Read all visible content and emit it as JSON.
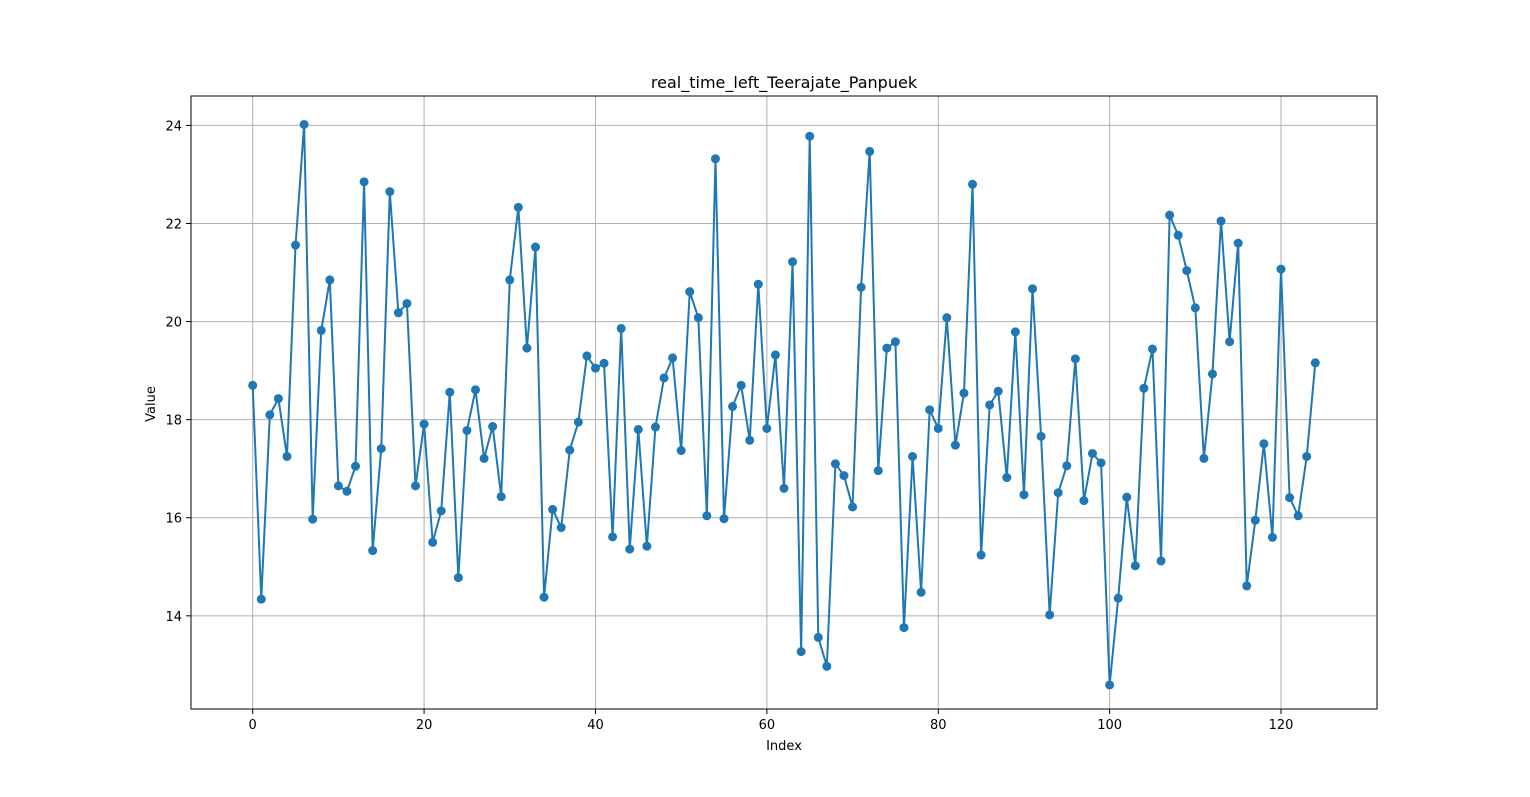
{
  "chart_data": {
    "type": "line",
    "title": "real_time_left_Teerajate_Panpuek",
    "xlabel": "Index",
    "ylabel": "Value",
    "xlim": [
      -7.2,
      131.2
    ],
    "ylim": [
      12.1,
      24.6
    ],
    "xticks": [
      0,
      20,
      40,
      60,
      80,
      100,
      120
    ],
    "yticks": [
      14,
      16,
      18,
      20,
      22,
      24
    ],
    "grid": true,
    "legend": "none",
    "marker": "circle",
    "color": "#1f77b4",
    "series": [
      {
        "x": [
          0,
          1,
          2,
          3,
          4,
          5,
          6,
          7,
          8,
          9,
          10,
          11,
          12,
          13,
          14,
          15,
          16,
          17,
          18,
          19,
          20,
          21,
          22,
          23,
          24,
          25,
          26,
          27,
          28,
          29,
          30,
          31,
          32,
          33,
          34,
          35,
          36,
          37,
          38,
          39,
          40,
          41,
          42,
          43,
          44,
          45,
          46,
          47,
          48,
          49,
          50,
          51,
          52,
          53,
          54,
          55,
          56,
          57,
          58,
          59,
          60,
          61,
          62,
          63,
          64,
          65,
          66,
          67,
          68,
          69,
          70,
          71,
          72,
          73,
          74,
          75,
          76,
          77,
          78,
          79,
          80,
          81,
          82,
          83,
          84,
          85,
          86,
          87,
          88,
          89,
          90,
          91,
          92,
          93,
          94,
          95,
          96,
          97,
          98,
          99,
          100,
          101,
          102,
          103,
          104,
          105,
          106,
          107,
          108,
          109,
          110,
          111,
          112,
          113,
          114,
          115,
          116,
          117,
          118,
          119,
          120,
          121,
          122,
          123,
          124
        ],
        "values": [
          18.7,
          14.34,
          18.1,
          18.43,
          17.25,
          21.56,
          24.02,
          15.97,
          19.82,
          20.85,
          16.65,
          16.54,
          17.05,
          22.85,
          15.33,
          17.41,
          22.65,
          20.18,
          20.37,
          16.65,
          17.91,
          15.5,
          16.14,
          18.56,
          14.78,
          17.78,
          18.61,
          17.21,
          17.86,
          16.43,
          20.85,
          22.33,
          19.46,
          21.52,
          14.38,
          16.17,
          15.8,
          17.38,
          17.95,
          19.3,
          19.05,
          19.15,
          15.61,
          19.86,
          15.36,
          17.8,
          15.42,
          17.85,
          18.85,
          19.26,
          17.37,
          20.61,
          20.08,
          16.04,
          23.32,
          15.98,
          18.27,
          18.7,
          17.58,
          20.76,
          17.82,
          19.32,
          16.6,
          21.22,
          13.27,
          23.78,
          13.56,
          12.97,
          17.1,
          16.86,
          16.22,
          20.7,
          23.47,
          16.96,
          19.46,
          19.59,
          13.76,
          17.25,
          14.48,
          18.2,
          17.82,
          20.08,
          17.48,
          18.54,
          22.8,
          15.24,
          18.3,
          18.58,
          16.82,
          19.79,
          16.47,
          20.67,
          17.66,
          14.02,
          16.51,
          17.06,
          19.24,
          16.35,
          17.31,
          17.12,
          12.59,
          14.36,
          16.42,
          15.02,
          18.64,
          19.44,
          15.12,
          22.17,
          21.76,
          21.04,
          20.28,
          17.21,
          18.93,
          22.05,
          19.59,
          21.6,
          14.61,
          15.95,
          17.51,
          15.6,
          21.07,
          16.41,
          16.04,
          17.25,
          19.16
        ]
      }
    ]
  }
}
